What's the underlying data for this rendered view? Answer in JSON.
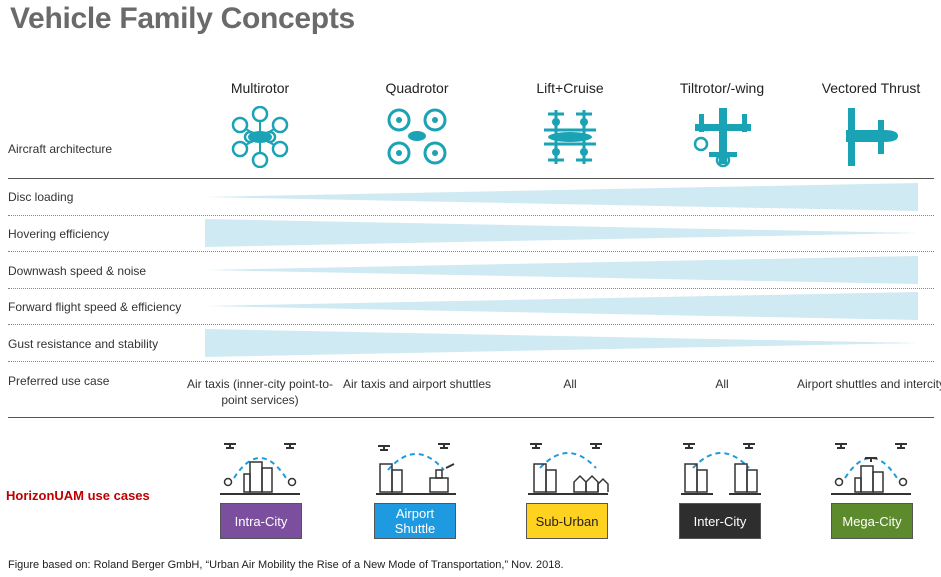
{
  "title": "Vehicle Family Concepts",
  "columns": [
    {
      "label": "Multirotor",
      "use_case": "Air taxis (inner-city point-to-point services)"
    },
    {
      "label": "Quadrotor",
      "use_case": "Air taxis and airport shuttles"
    },
    {
      "label": "Lift+Cruise",
      "use_case": "All"
    },
    {
      "label": "Tiltrotor/-wing",
      "use_case": "All"
    },
    {
      "label": "Vectored Thrust",
      "use_case": "Airport shuttles and intercity"
    }
  ],
  "rows": {
    "architecture": "Aircraft architecture",
    "disc_loading": "Disc loading",
    "hovering_efficiency": "Hovering efficiency",
    "downwash": "Downwash speed & noise",
    "forward_flight": "Forward flight speed & efficiency",
    "gust_resistance": "Gust resistance and stability",
    "preferred_use": "Preferred use case"
  },
  "uam": {
    "label": "HorizonUAM use cases",
    "cases": [
      {
        "label": "Intra-City",
        "color": "#7b4f9e",
        "text_color": "#ffffff"
      },
      {
        "label": "Airport Shuttle",
        "color": "#1e9be0",
        "text_color": "#ffffff"
      },
      {
        "label": "Sub-Urban",
        "color": "#ffd21f",
        "text_color": "#222222"
      },
      {
        "label": "Inter-City",
        "color": "#2e2e2e",
        "text_color": "#ffffff"
      },
      {
        "label": "Mega-City",
        "color": "#5e8a2e",
        "text_color": "#ffffff"
      }
    ]
  },
  "footnote": "Figure based on: Roland Berger GmbH, “Urban Air Mobility the Rise of a New Mode of Transportation,” Nov. 2018.",
  "colors": {
    "icon_teal": "#1aa3b5",
    "bar_fill": "#cfeaf2",
    "accent_red": "#c00000"
  }
}
